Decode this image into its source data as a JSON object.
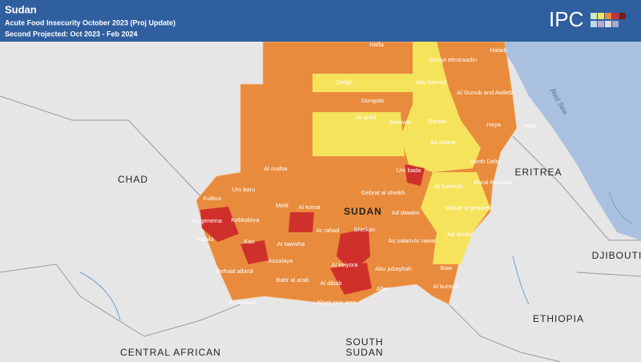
{
  "header": {
    "title": "Sudan",
    "subtitle": "Acute Food Insecurity October 2023 (Proj Update)",
    "period": "Second Projected: Oct 2023 - Feb 2024",
    "logo": "IPC"
  },
  "countries": [
    {
      "label": "CHAD"
    },
    {
      "label": "ERITREA"
    },
    {
      "label": "SUDAN"
    },
    {
      "label": "DJIBOUTI"
    },
    {
      "label": "ETHIOPIA"
    },
    {
      "lines": [
        "SOUTH",
        "SUDAN"
      ]
    },
    {
      "label": "CENTRAL AFRICAN"
    }
  ],
  "sea": "Red Sea",
  "localities": [
    {
      "label": "Halfa"
    },
    {
      "label": "Halaib"
    },
    {
      "label": "Jubayt elma'aadin"
    },
    {
      "label": "Delgo"
    },
    {
      "label": "Abu hamad"
    },
    {
      "label": "Dongola"
    },
    {
      "label": "Al Gunub and Awlieb"
    },
    {
      "label": "Al golid"
    },
    {
      "label": "Merwoe"
    },
    {
      "label": "Barbar"
    },
    {
      "label": "Haya"
    },
    {
      "label": "Agig"
    },
    {
      "label": "Ad damar"
    },
    {
      "label": "North Delta"
    },
    {
      "label": "Al malha"
    },
    {
      "label": "Um bada"
    },
    {
      "label": "Al butanah"
    },
    {
      "label": "Rural Kassala"
    },
    {
      "label": "Um baru"
    },
    {
      "label": "Gebrat al sheikh"
    },
    {
      "label": "Kulbus"
    },
    {
      "label": "Melit"
    },
    {
      "label": "Al koma"
    },
    {
      "label": "Wasat al gedaref"
    },
    {
      "label": "Ad diwaim"
    },
    {
      "label": "Ag geneina"
    },
    {
      "label": "Kebkabiya"
    },
    {
      "label": "Ar rahad"
    },
    {
      "label": "Sheikan"
    },
    {
      "label": "As salam"
    },
    {
      "label": "Ar rawat"
    },
    {
      "label": "Ad dinder"
    },
    {
      "label": "Habila"
    },
    {
      "label": "Kas"
    },
    {
      "label": "At tawisha"
    },
    {
      "label": "Abu jubayhah"
    },
    {
      "label": "Al keiyora"
    },
    {
      "label": "Assalaya"
    },
    {
      "label": "Rehaid albirdi"
    },
    {
      "label": "Bahr al arab"
    },
    {
      "label": "Al dibab"
    },
    {
      "label": "Alleri"
    },
    {
      "label": "Baw"
    },
    {
      "label": "Al kurmuk"
    },
    {
      "label": "Ar radoum"
    },
    {
      "label": "Abyei pca area"
    }
  ]
}
